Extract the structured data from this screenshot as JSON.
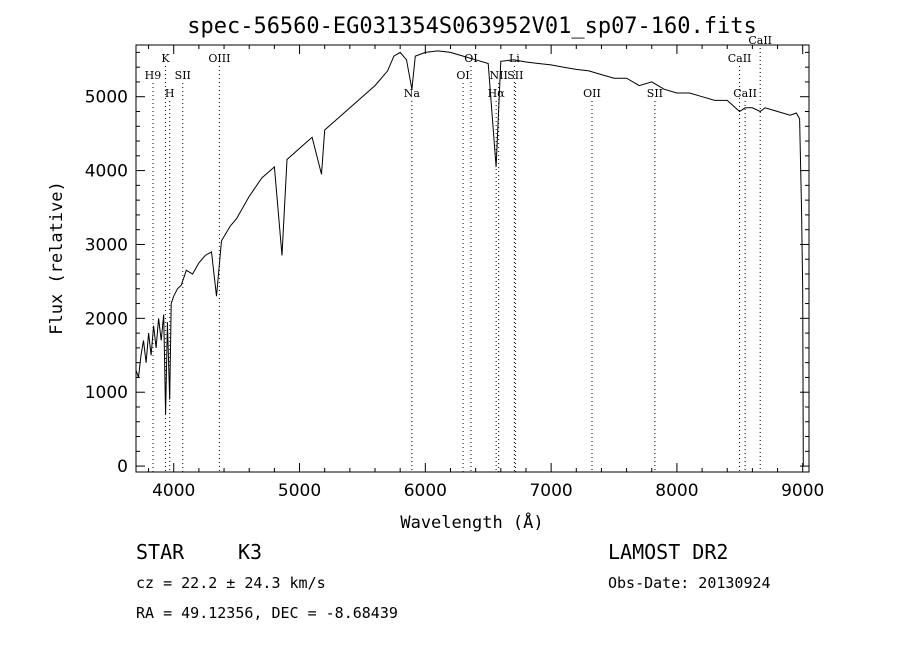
{
  "chart_data": {
    "type": "line",
    "title": "spec-56560-EG031354S063952V01_sp07-160.fits",
    "xlabel": "Wavelength (Å)",
    "ylabel": "Flux (relative)",
    "xlim": [
      3700,
      9050
    ],
    "ylim": [
      -80,
      5700
    ],
    "xticks": [
      4000,
      5000,
      6000,
      7000,
      8000,
      9000
    ],
    "yticks": [
      0,
      1000,
      2000,
      3000,
      4000,
      5000
    ],
    "grid": false,
    "series": [
      {
        "x": [
          3700,
          3720,
          3740,
          3760,
          3780,
          3800,
          3820,
          3840,
          3860,
          3880,
          3900,
          3920,
          3935,
          3950,
          3968,
          3980,
          4000,
          4030,
          4060,
          4100,
          4150,
          4200,
          4250,
          4300,
          4340,
          4380,
          4450,
          4500,
          4600,
          4700,
          4800,
          4861,
          4900,
          5000,
          5100,
          5175,
          5200,
          5300,
          5400,
          5500,
          5600,
          5700,
          5750,
          5800,
          5850,
          5893,
          5920,
          6000,
          6100,
          6200,
          6300,
          6400,
          6500,
          6563,
          6600,
          6700,
          6800,
          6900,
          7000,
          7100,
          7200,
          7300,
          7400,
          7500,
          7600,
          7700,
          7800,
          7900,
          8000,
          8100,
          8200,
          8300,
          8400,
          8498,
          8542,
          8600,
          8662,
          8700,
          8800,
          8900,
          8950,
          8975,
          8990,
          9000,
          9005
        ],
        "y": [
          1300,
          1200,
          1500,
          1700,
          1400,
          1800,
          1500,
          1900,
          1600,
          2000,
          1700,
          2050,
          700,
          1950,
          900,
          2200,
          2300,
          2400,
          2450,
          2650,
          2600,
          2750,
          2850,
          2900,
          2300,
          3050,
          3250,
          3350,
          3650,
          3900,
          4050,
          2850,
          4150,
          4300,
          4450,
          3950,
          4550,
          4700,
          4850,
          5000,
          5150,
          5350,
          5550,
          5600,
          5500,
          5100,
          5550,
          5600,
          5620,
          5600,
          5550,
          5500,
          5450,
          4050,
          5480,
          5500,
          5470,
          5450,
          5430,
          5400,
          5370,
          5350,
          5300,
          5250,
          5250,
          5150,
          5200,
          5100,
          5050,
          5050,
          5000,
          4950,
          4950,
          4800,
          4850,
          4850,
          4800,
          4850,
          4800,
          4750,
          4780,
          4700,
          3500,
          2400,
          0
        ]
      }
    ],
    "annotations": [
      {
        "label": "H9",
        "x": 3835,
        "row": 2
      },
      {
        "label": "K",
        "x": 3934,
        "row": 1
      },
      {
        "label": "H",
        "x": 3968,
        "row": 3
      },
      {
        "label": "SII",
        "x": 4072,
        "row": 2
      },
      {
        "label": "OIII",
        "x": 4363,
        "row": 1
      },
      {
        "label": "Na",
        "x": 5893,
        "row": 3
      },
      {
        "label": "OI",
        "x": 6300,
        "row": 2
      },
      {
        "label": "OI",
        "x": 6363,
        "row": 1
      },
      {
        "label": "Hα",
        "x": 6563,
        "row": 3
      },
      {
        "label": "NII",
        "x": 6583,
        "row": 2
      },
      {
        "label": "Li",
        "x": 6708,
        "row": 1
      },
      {
        "label": "SII",
        "x": 6716,
        "row": 2
      },
      {
        "label": "OII",
        "x": 7325,
        "row": 3
      },
      {
        "label": "SII",
        "x": 7825,
        "row": 3
      },
      {
        "label": "CaII",
        "x": 8498,
        "row": 1
      },
      {
        "label": "CaII",
        "x": 8542,
        "row": 3
      },
      {
        "label": "CaII",
        "x": 8662,
        "row": 0
      }
    ]
  },
  "info": {
    "class_label": "STAR",
    "subclass": "K3",
    "survey": "LAMOST DR2",
    "cz": "cz = 22.2 ± 24.3 km/s",
    "obs_date": "Obs-Date: 20130924",
    "radec": "RA =  49.12356, DEC =  -8.68439"
  }
}
